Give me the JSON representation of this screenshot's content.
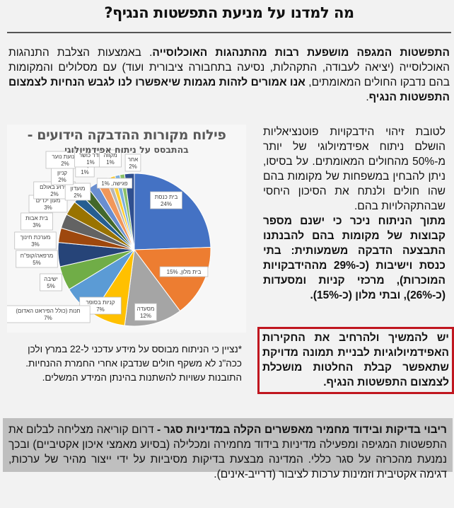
{
  "header": {
    "title": "מה למדנו על מניעת התפשטות הנגיף?"
  },
  "intro": {
    "bold_1": "התפשטות המגפה מושפעת רבות מהתנהגות האוכלוסייה",
    "text_1": ". באמצעות הצלבת התנהגות האוכלוסייה (יציאה לעבודה, התקהלות, נסיעה בתחבורה ציבורית ועוד) עם מסלולים והמקומות בהם נדבקו החולים המאומתים, ",
    "bold_2": "אנו אמורים לזהות מגמות שיאפשרו לנו לגבש הנחיות לצמצום התפשטות הנגיף",
    "text_2": "."
  },
  "side": {
    "paragraph_1": "לטובת זיהוי הידבקויות פוטנציאליות הושלם ניתוח אפידמיולוגי של יותר מ-50% מהחולים המאומתים. על בסיסו, ניתן להבחין במשפחות של מקומות בהם שהו חולים ולנתח את הסיכון היחסי שבהתקהלויות בהם.",
    "paragraph_2_bold": "מתוך הניתוח ניכר כי ישנם מספר קבוצות של מקומות בהם להבנתנו התבצעה הדבקה משמעותית: בתי כנסת וישיבות (כ-29% מההידבקויות המוכרות), מרכזי קניות ומסעדות (כ-26%), ובתי מלון (כ-15%)."
  },
  "callout": {
    "text": "יש להמשיך ולהרחיב את החקירות האפידמיולוגיות לבניית תמונה מדויקת שתאפשר קבלת החלטות מושכלת לצמצום התפשטות הנגיף.",
    "border_color": "#c0161f"
  },
  "footnote": {
    "text": "*נציין כי הניתוח מבוסס על מידע עדכני ל-22 במרץ ולכן ככה\"נ לא משקף חולים שנדבקו אחרי החמרת ההנחיות. התובנות עשויות להשתנות בהינתן המידע המשלים."
  },
  "bottom": {
    "bold": "ריבוי בדיקות ובידוד מחמיר מאפשרים הקלה במדיניות סגר - ",
    "text": "דרום קוריאה מצליחה לבלום את התפשטות המגיפה ומפעילה מדיניות בידוד מחמירה ומכלילה (בסיוע מאמצי איכון אקטיביים) ובכך נמנעת מהכרזה על סגר כללי. המדינה מבצעת בדיקות מסיביות על ידי ייצור מהיר של ערכות, דגימה אקטיבית וזמינות ערכות לציבור (דרייב-אינים).",
    "background": "#bfbfbf"
  },
  "chart_data": {
    "type": "pie",
    "title": "פילוח מקורות ההדבקה הידועים -",
    "subtitle": "בהתבסס על ניתוח אפידמיולוגי",
    "categories": [
      "בית כנסת",
      "בית מלון",
      "מסעדה",
      "קניות בסופר",
      "חנות (כולל הפיראט האדום)",
      "ישיבה",
      "מרפאה/קופ\"ח",
      "מערכת חינוך",
      "בית אבות",
      "מעון ילדים",
      "אירוע באולם",
      "מועדון",
      "קניון",
      "תנועת נוער",
      "קלפי",
      "חדר כושר",
      "פגישה",
      "מקווה",
      "אחר"
    ],
    "values": [
      24,
      15,
      12,
      7,
      7,
      5,
      5,
      3,
      3,
      3,
      2,
      2,
      2,
      2,
      1,
      1,
      1,
      1,
      2
    ],
    "labels": [
      "בית כנסת\n24%",
      "בית מלון, 15%",
      "מסעדה\n12%",
      "קניות בסופר\n7%",
      "חנות (כולל הפיראט האדום)\n7%",
      "ישיבה\n5%",
      "מרפאה/קופ\"ח\n5%",
      "מערכת חינוך\n3%",
      "בית אבות\n3%",
      "מעון ילדים\n3%",
      "אירוע באולם\n2%",
      "מועדון\n2%",
      "קניון\n2%",
      "תנועת נוער\n2%",
      "קלפי\n1%",
      "חדר כושר\n1%",
      "פגישה, 1%",
      "מקווה\n1%",
      "אחר\n2%"
    ],
    "colors": [
      "#4472c4",
      "#ed7d31",
      "#a5a5a5",
      "#ffc000",
      "#5b9bd5",
      "#70ad47",
      "#264478",
      "#9e480e",
      "#636363",
      "#997300",
      "#255e91",
      "#43682b",
      "#698ed0",
      "#f1975a",
      "#b7b7b7",
      "#ffcd33",
      "#7cafdd",
      "#8cc168",
      "#2f4f8f"
    ],
    "legend": "none",
    "unit": "%"
  }
}
